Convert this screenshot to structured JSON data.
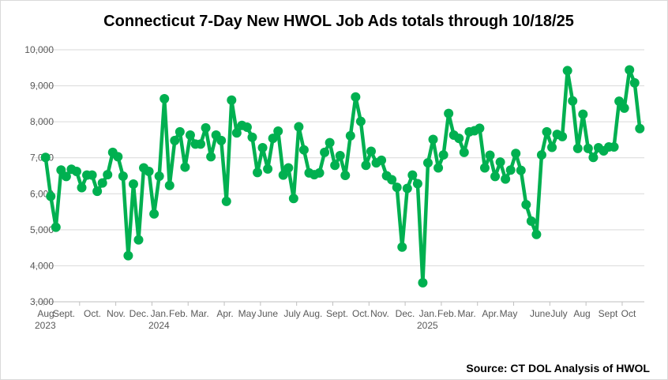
{
  "chart_data": {
    "type": "line",
    "title": "Connecticut 7-Day New HWOL Job Ads totals through 10/18/25",
    "source": "Source: CT DOL Analysis of HWOL",
    "x_last_date": "2025-10-18",
    "x_interval": "weekly",
    "xlabel": "",
    "ylabel": "",
    "ylim": [
      3000,
      10000
    ],
    "yticks": [
      "3,000",
      "4,000",
      "5,000",
      "6,000",
      "7,000",
      "8,000",
      "9,000",
      "10,000"
    ],
    "grid": true,
    "legend": "none",
    "color": "#00b050",
    "xtick_labels": [
      {
        "label": "Aug",
        "year": "2023"
      },
      {
        "label": "Sept.",
        "year": ""
      },
      {
        "label": "Oct.",
        "year": ""
      },
      {
        "label": "Nov.",
        "year": ""
      },
      {
        "label": "Dec.",
        "year": ""
      },
      {
        "label": "Jan.",
        "year": "2024"
      },
      {
        "label": "Feb.",
        "year": ""
      },
      {
        "label": "Mar.",
        "year": ""
      },
      {
        "label": "Apr.",
        "year": ""
      },
      {
        "label": "May",
        "year": ""
      },
      {
        "label": "June",
        "year": ""
      },
      {
        "label": "July",
        "year": ""
      },
      {
        "label": "Aug.",
        "year": ""
      },
      {
        "label": "Sept.",
        "year": ""
      },
      {
        "label": "Oct.",
        "year": ""
      },
      {
        "label": "Nov.",
        "year": ""
      },
      {
        "label": "Dec.",
        "year": ""
      },
      {
        "label": "Jan.",
        "year": "2025"
      },
      {
        "label": "Feb.",
        "year": ""
      },
      {
        "label": "Mar.",
        "year": ""
      },
      {
        "label": "Apr.",
        "year": ""
      },
      {
        "label": "May",
        "year": ""
      },
      {
        "label": "June",
        "year": ""
      },
      {
        "label": "July",
        "year": ""
      },
      {
        "label": "Aug",
        "year": ""
      },
      {
        "label": "Sept",
        "year": ""
      },
      {
        "label": "Oct",
        "year": ""
      }
    ],
    "values": [
      7010,
      5930,
      5070,
      6660,
      6480,
      6680,
      6620,
      6170,
      6520,
      6520,
      6070,
      6300,
      6530,
      7150,
      7030,
      6490,
      4280,
      6270,
      4720,
      6720,
      6620,
      5440,
      6490,
      8640,
      6230,
      7480,
      7720,
      6740,
      7630,
      7380,
      7380,
      7830,
      7030,
      7630,
      7480,
      5790,
      8600,
      7690,
      7900,
      7850,
      7570,
      6590,
      7280,
      6690,
      7540,
      7740,
      6520,
      6720,
      5870,
      7860,
      7220,
      6580,
      6530,
      6580,
      7150,
      7420,
      6790,
      7060,
      6510,
      7610,
      8690,
      8010,
      6790,
      7180,
      6860,
      6930,
      6500,
      6390,
      6180,
      4520,
      6150,
      6520,
      6280,
      3530,
      6860,
      7510,
      6720,
      7080,
      8230,
      7630,
      7540,
      7150,
      7720,
      7750,
      7820,
      6720,
      7070,
      6480,
      6880,
      6410,
      6660,
      7120,
      6650,
      5700,
      5240,
      4870,
      7080,
      7720,
      7290,
      7650,
      7590,
      9420,
      8580,
      7260,
      8210,
      7260,
      7010,
      7280,
      7190,
      7300,
      7300,
      8570,
      8380,
      9440,
      9080,
      7810
    ]
  }
}
